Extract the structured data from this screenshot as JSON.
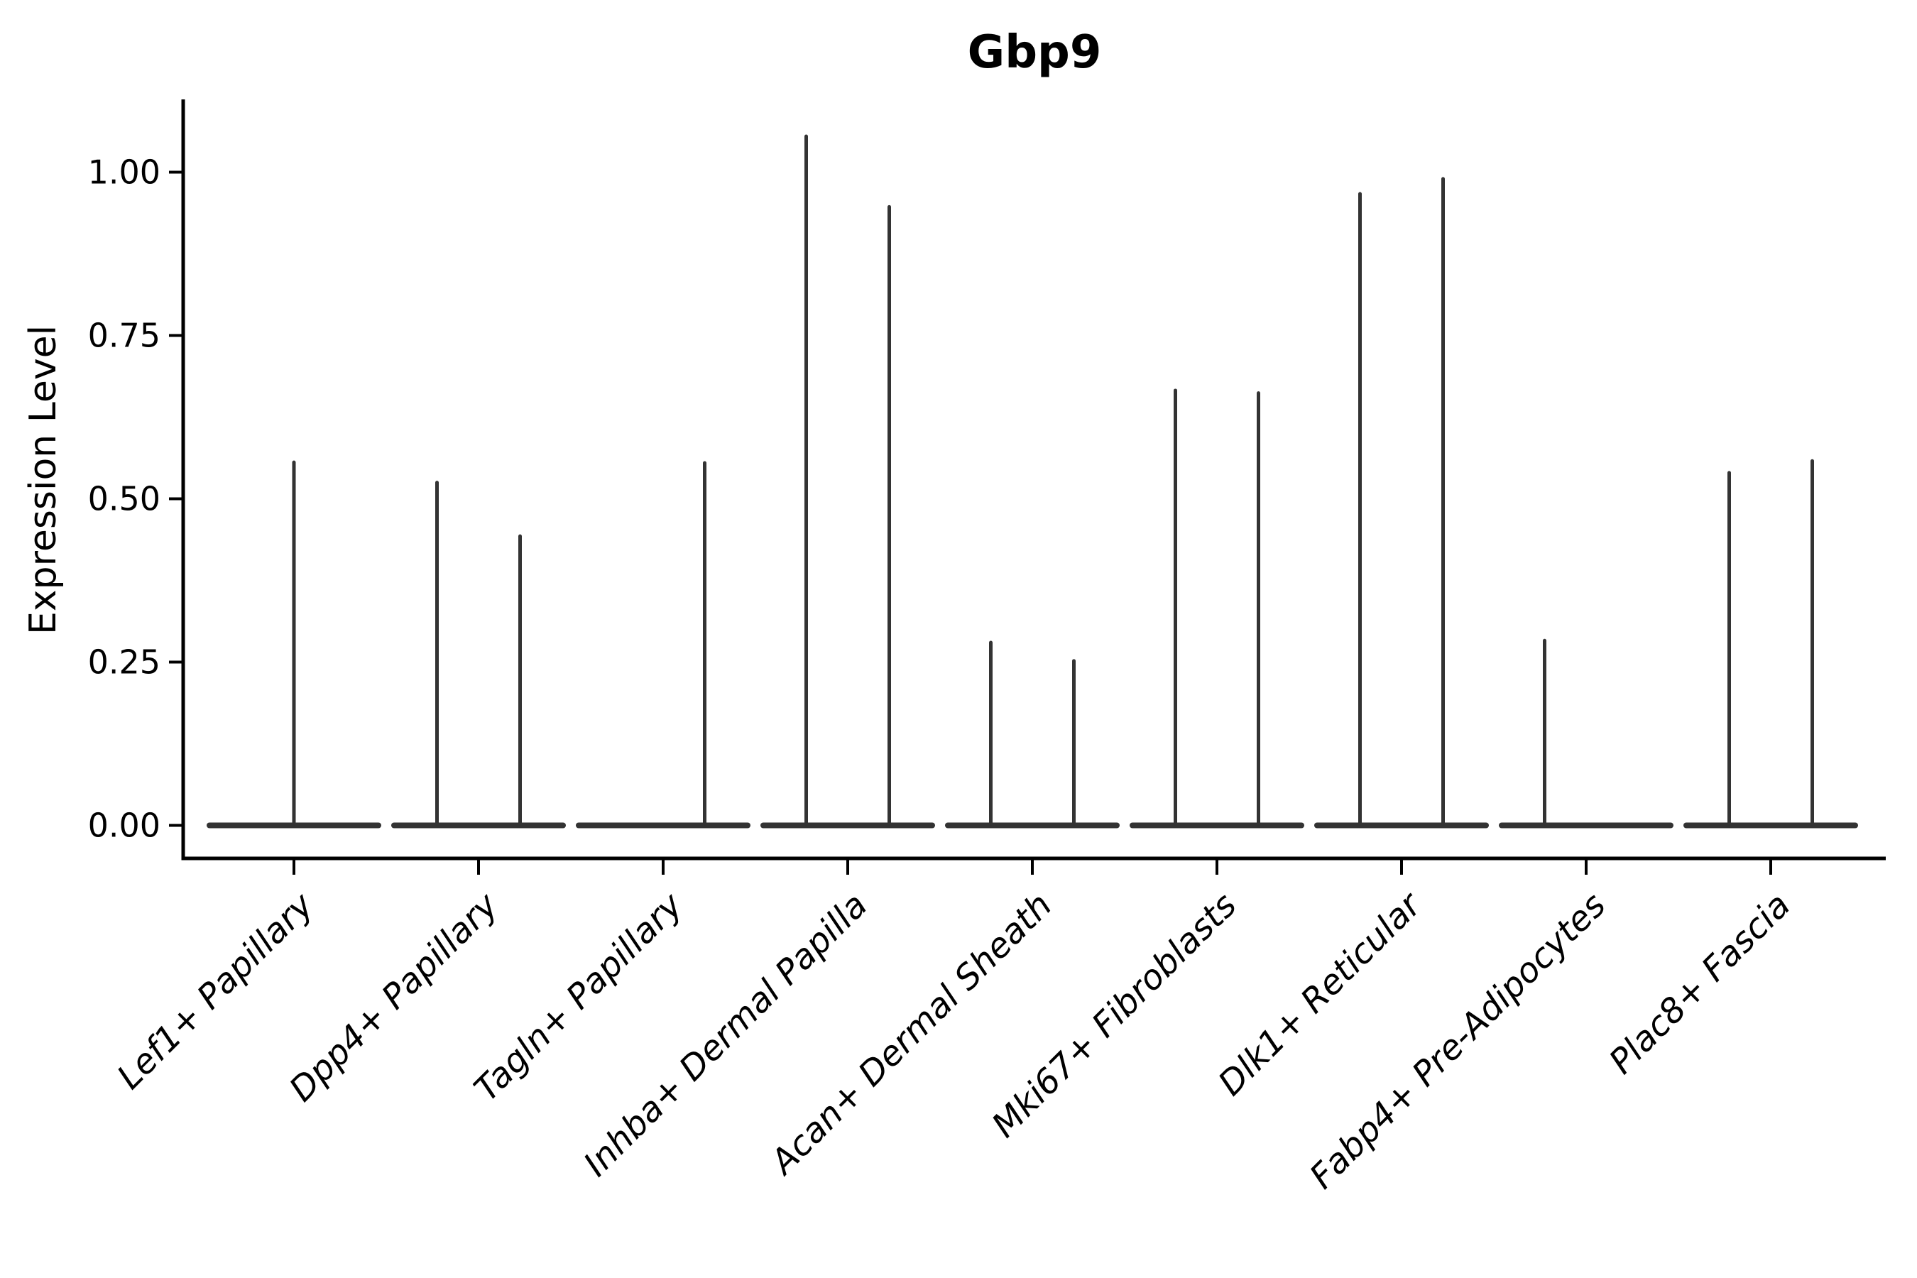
{
  "figure": {
    "title": "Gbp9",
    "y_axis": {
      "label": "Expression Level",
      "tick_labels": [
        "0.00",
        "0.25",
        "0.50",
        "0.75",
        "1.00"
      ]
    },
    "x_axis": {
      "label": "",
      "tick_labels": [
        "Lef1+ Papillary",
        "Dpp4+ Papillary",
        "Tagln+ Papillary",
        "Inhba+ Dermal Papilla",
        "Acan+ Dermal Sheath",
        "Mki67+ Fibroblasts",
        "Dlk1+ Reticular",
        "Fabp4+ Pre-Adipocytes",
        "Plac8+ Fascia"
      ]
    }
  },
  "colors": {
    "background": "#ffffff",
    "violin": "#333333",
    "axis": "#000000",
    "text": "#000000"
  },
  "chart_data": {
    "type": "violin",
    "title": "Gbp9",
    "xlabel": "",
    "ylabel": "Expression Level",
    "ylim": [
      -0.05,
      1.11
    ],
    "yticks": [
      0,
      0.25,
      0.5,
      0.75,
      1.0
    ],
    "grid": false,
    "legend": null,
    "orientation": "vertical",
    "violin_style": "mostly-zero expression: each violin collapses to a flat bar at 0 with thin vertical density spikes up to the max expressed value",
    "categories": [
      "Lef1+ Papillary",
      "Dpp4+ Papillary",
      "Tagln+ Papillary",
      "Inhba+ Dermal Papilla",
      "Acan+ Dermal Sheath",
      "Mki67+ Fibroblasts",
      "Dlk1+ Reticular",
      "Fabp4+ Pre-Adipocytes",
      "Plac8+ Fascia"
    ],
    "violins": [
      {
        "category": "Lef1+ Papillary",
        "baseline_value": 0,
        "spikes": [
          {
            "position": "center",
            "max_expression": 0.558
          }
        ]
      },
      {
        "category": "Dpp4+ Papillary",
        "baseline_value": 0,
        "spikes": [
          {
            "position": "left",
            "max_expression": 0.527
          },
          {
            "position": "right",
            "max_expression": 0.445
          }
        ]
      },
      {
        "category": "Tagln+ Papillary",
        "baseline_value": 0,
        "spikes": [
          {
            "position": "right",
            "max_expression": 0.557
          }
        ]
      },
      {
        "category": "Inhba+ Dermal Papilla",
        "baseline_value": 0,
        "spikes": [
          {
            "position": "left",
            "max_expression": 1.057
          },
          {
            "position": "right",
            "max_expression": 0.949
          }
        ]
      },
      {
        "category": "Acan+ Dermal Sheath",
        "baseline_value": 0,
        "spikes": [
          {
            "position": "left",
            "max_expression": 0.282
          },
          {
            "position": "right",
            "max_expression": 0.254
          }
        ]
      },
      {
        "category": "Mki67+ Fibroblasts",
        "baseline_value": 0,
        "spikes": [
          {
            "position": "left",
            "max_expression": 0.668
          },
          {
            "position": "right",
            "max_expression": 0.664
          }
        ]
      },
      {
        "category": "Dlk1+ Reticular",
        "baseline_value": 0,
        "spikes": [
          {
            "position": "left",
            "max_expression": 0.969
          },
          {
            "position": "right",
            "max_expression": 0.992
          }
        ]
      },
      {
        "category": "Fabp4+ Pre-Adipocytes",
        "baseline_value": 0,
        "spikes": [
          {
            "position": "left",
            "max_expression": 0.285
          }
        ]
      },
      {
        "category": "Plac8+ Fascia",
        "baseline_value": 0,
        "spikes": [
          {
            "position": "left",
            "max_expression": 0.542
          },
          {
            "position": "right",
            "max_expression": 0.56
          }
        ]
      }
    ]
  }
}
